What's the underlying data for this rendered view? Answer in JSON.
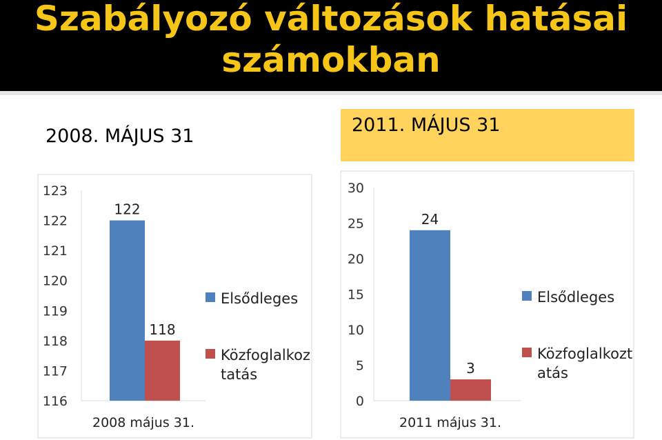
{
  "slide": {
    "title_line1": "Szabályozó változások hatásai",
    "title_line2": "számokban",
    "date_left": "2008. MÁJUS 31",
    "date_right": "2011. MÁJUS 31",
    "colors": {
      "title_band": "#000000",
      "title_text": "#f5c518",
      "date_highlight": "#ffd35c"
    }
  },
  "chart_data": [
    {
      "type": "bar",
      "categories": [
        "2008 május 31."
      ],
      "series": [
        {
          "name": "Elsődleges",
          "values": [
            122
          ],
          "color": "#4f81bd"
        },
        {
          "name": "Közfoglalkoztatás",
          "values": [
            118
          ],
          "color": "#c0504d"
        }
      ],
      "data_labels": [
        "122",
        "118"
      ],
      "yticks": [
        "123",
        "122",
        "121",
        "120",
        "119",
        "118",
        "117",
        "116"
      ],
      "legend_labels": [
        [
          "Elsődleges"
        ],
        [
          "Közfoglalkoz",
          "tatás"
        ]
      ],
      "ylim": [
        116,
        123
      ],
      "grid": false,
      "legend": "right"
    },
    {
      "type": "bar",
      "categories": [
        "2011 május 31."
      ],
      "series": [
        {
          "name": "Elsődleges",
          "values": [
            24
          ],
          "color": "#4f81bd"
        },
        {
          "name": "Közfoglalkoztatás",
          "values": [
            3
          ],
          "color": "#c0504d"
        }
      ],
      "data_labels": [
        "24",
        "3"
      ],
      "yticks": [
        "30",
        "25",
        "20",
        "15",
        "10",
        "5",
        "0"
      ],
      "legend_labels": [
        [
          "Elsődleges"
        ],
        [
          "Közfoglalkozt",
          "atás"
        ]
      ],
      "ylim": [
        0,
        30
      ],
      "grid": false,
      "legend": "right"
    }
  ]
}
